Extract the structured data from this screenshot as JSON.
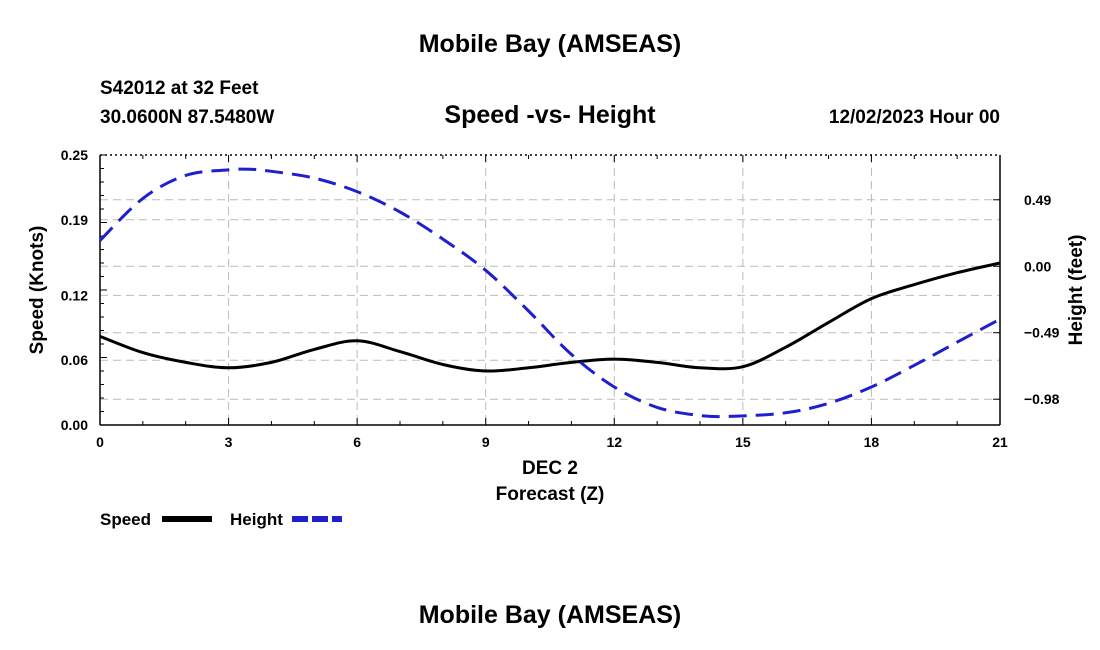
{
  "header": {
    "title_top": "Mobile Bay (AMSEAS)",
    "station": "S42012 at 32 Feet",
    "coords": "30.0600N  87.5480W",
    "subtitle": "Speed -vs- Height",
    "timestamp": "12/02/2023 Hour 00",
    "title_bottom": "Mobile Bay (AMSEAS)"
  },
  "chart_data": {
    "type": "line",
    "title": "Speed -vs- Height",
    "xlabel": "Forecast (Z)",
    "xlabel_date": "DEC 2",
    "ylabel_left": "Speed (Knots)",
    "ylabel_right": "Height (feet)",
    "xlim": [
      0,
      21
    ],
    "ylim_left": [
      0,
      0.25
    ],
    "ylim_right": [
      -1.17,
      0.82
    ],
    "x_ticks": [
      0,
      3,
      6,
      9,
      12,
      15,
      18,
      21
    ],
    "x_tick_labels": [
      "0",
      "3",
      "6",
      "9",
      "12",
      "15",
      "18",
      "21"
    ],
    "y_left_ticks": [
      0.0,
      0.06,
      0.12,
      0.19,
      0.25
    ],
    "y_left_tick_labels": [
      "0.00",
      "0.06",
      "0.12",
      "0.19",
      "0.25"
    ],
    "y_right_ticks": [
      0.49,
      0.0,
      -0.49,
      -0.98
    ],
    "y_right_tick_labels": [
      "0.49",
      "0.00",
      "−0.49",
      "−0.98"
    ],
    "grid": true,
    "legend_position": "bottom-left",
    "series": [
      {
        "name": "Speed",
        "axis": "left",
        "color": "#000000",
        "style": "solid",
        "x": [
          0,
          1,
          2,
          3,
          4,
          5,
          6,
          7,
          8,
          9,
          10,
          11,
          12,
          13,
          14,
          15,
          16,
          17,
          18,
          19,
          20,
          21
        ],
        "values": [
          0.082,
          0.067,
          0.058,
          0.053,
          0.058,
          0.07,
          0.078,
          0.068,
          0.056,
          0.05,
          0.053,
          0.058,
          0.061,
          0.058,
          0.053,
          0.054,
          0.072,
          0.095,
          0.117,
          0.13,
          0.141,
          0.15
        ]
      },
      {
        "name": "Height",
        "axis": "right",
        "color": "#1f1fcf",
        "style": "dashed",
        "x": [
          0,
          1,
          2,
          3,
          3.5,
          4,
          5,
          6,
          7,
          8,
          9,
          10,
          11,
          12,
          13,
          14,
          14.8,
          16,
          17,
          18,
          19,
          20,
          21
        ],
        "values": [
          0.19,
          0.5,
          0.67,
          0.71,
          0.715,
          0.7,
          0.65,
          0.55,
          0.4,
          0.2,
          -0.03,
          -0.33,
          -0.65,
          -0.89,
          -1.04,
          -1.1,
          -1.105,
          -1.08,
          -1.01,
          -0.89,
          -0.73,
          -0.56,
          -0.39
        ]
      }
    ]
  }
}
